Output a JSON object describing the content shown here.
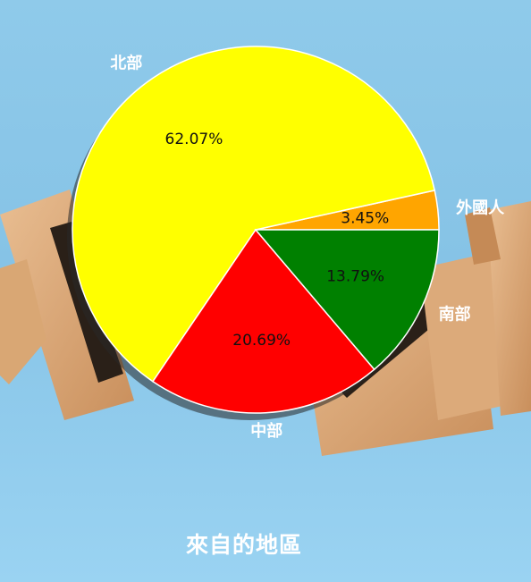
{
  "chart_data": {
    "type": "pie",
    "slices": [
      {
        "label": "外國人",
        "value": 3.45,
        "pct_text": "3.45%",
        "color": "#ffa500"
      },
      {
        "label": "北部",
        "value": 62.07,
        "pct_text": "62.07%",
        "color": "#ffff00"
      },
      {
        "label": "中部",
        "value": 20.69,
        "pct_text": "20.69%",
        "color": "#ff0000"
      },
      {
        "label": "南部",
        "value": 13.79,
        "pct_text": "13.79%",
        "color": "#008000"
      }
    ],
    "start_angle_deg": 0,
    "direction": "counterclockwise",
    "shadow": true
  },
  "caption": "來自的地區"
}
